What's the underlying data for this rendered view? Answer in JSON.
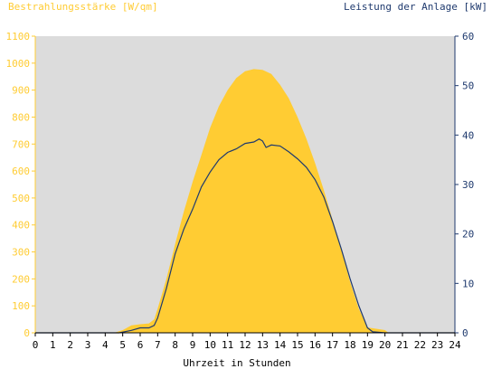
{
  "chart_data": {
    "type": "area",
    "left_axis_label": "Bestrahlungsstärke [W/qm]",
    "right_axis_label": "Leistung der Anlage [kW]",
    "xlabel": "Uhrzeit in Stunden",
    "x_ticks": [
      "0",
      "1",
      "2",
      "3",
      "4",
      "5",
      "6",
      "7",
      "8",
      "9",
      "10",
      "11",
      "12",
      "13",
      "14",
      "15",
      "16",
      "17",
      "18",
      "19",
      "20",
      "21",
      "22",
      "23",
      "24"
    ],
    "left_ticks": [
      "0",
      "100",
      "200",
      "300",
      "400",
      "500",
      "600",
      "700",
      "800",
      "900",
      "1000",
      "1100"
    ],
    "right_ticks": [
      "0",
      "10",
      "20",
      "30",
      "40",
      "50",
      "60"
    ],
    "xlim": [
      0,
      24
    ],
    "left_ylim": [
      0,
      1100
    ],
    "right_ylim": [
      0,
      60
    ],
    "grid": false,
    "series": [
      {
        "type": "area",
        "axis": "left",
        "x": [
          0,
          4.5,
          5,
          5.5,
          6,
          6.5,
          6.8,
          7,
          7.5,
          8,
          8.5,
          9,
          9.5,
          10,
          10.5,
          11,
          11.5,
          12,
          12.5,
          13,
          13.5,
          14,
          14.5,
          15,
          15.5,
          16,
          16.5,
          17,
          17.5,
          18,
          18.5,
          19,
          19.2,
          19.5,
          20,
          20.2,
          24
        ],
        "y": [
          0,
          0,
          10,
          28,
          32,
          35,
          50,
          90,
          200,
          330,
          450,
          560,
          660,
          760,
          840,
          900,
          945,
          970,
          978,
          975,
          960,
          920,
          870,
          800,
          720,
          630,
          530,
          420,
          310,
          190,
          90,
          20,
          18,
          15,
          10,
          0,
          0
        ]
      },
      {
        "type": "line",
        "axis": "right",
        "x": [
          0,
          4.8,
          5.5,
          6,
          6.5,
          6.8,
          7,
          7.5,
          8,
          8.5,
          9,
          9.5,
          10,
          10.5,
          11,
          11.5,
          12,
          12.5,
          12.8,
          13,
          13.2,
          13.5,
          14,
          14.5,
          15,
          15.5,
          16,
          16.5,
          17,
          17.5,
          18,
          18.5,
          19,
          19.3,
          20,
          24
        ],
        "y": [
          0,
          0,
          0.5,
          1,
          1,
          1.5,
          3,
          9,
          16,
          21,
          25,
          29.5,
          32.5,
          35,
          36.5,
          37.2,
          38.3,
          38.6,
          39.2,
          38.8,
          37.5,
          38,
          37.8,
          36.6,
          35.2,
          33.5,
          31,
          27.5,
          22.5,
          17,
          11,
          5.5,
          1,
          0.2,
          0,
          0
        ]
      }
    ],
    "colors": {
      "plot_background": "#dcdcdc",
      "area_fill": "#ffcc33",
      "line": "#1f3a6e",
      "left_axis_text": "#ffcc33",
      "right_axis_text": "#1f3a6e",
      "bottom_axis_text": "#000000"
    }
  }
}
